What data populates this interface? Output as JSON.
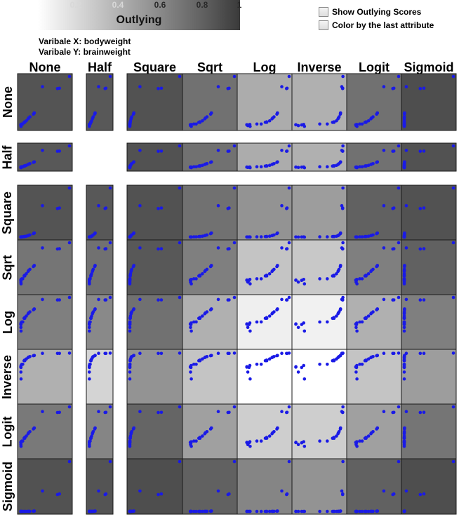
{
  "legend": {
    "title": "Outlying",
    "ticks": [
      "0.2",
      "0.4",
      "0.6",
      "0.8",
      "1"
    ]
  },
  "variables": {
    "x_label": "Varibale X: bodyweight",
    "y_label": "Varibale Y: brainweight"
  },
  "options": {
    "show_scores": "Show Outlying Scores",
    "color_by_last": "Color by the last attribute"
  },
  "chart_data": {
    "type": "scatter-matrix",
    "columns": [
      "None",
      "Half",
      "Square",
      "Sqrt",
      "Log",
      "Inverse",
      "Logit",
      "Sigmoid"
    ],
    "rows": [
      "None",
      "Half",
      "Square",
      "Sqrt",
      "Log",
      "Inverse",
      "Logit",
      "Sigmoid"
    ],
    "point_color": "#1a1ae6",
    "missing_row": "Half",
    "missing_column": "Half",
    "shade_scale": [
      "#ffffff",
      "#3a3a3a"
    ],
    "outlying_scores": [
      [
        0.87,
        0.85,
        0.88,
        0.72,
        0.42,
        0.4,
        0.72,
        0.9
      ],
      [
        0.85,
        null,
        0.88,
        0.72,
        0.42,
        0.4,
        0.72,
        0.88
      ],
      [
        0.87,
        0.85,
        0.88,
        0.72,
        0.55,
        0.5,
        0.8,
        0.88
      ],
      [
        0.7,
        0.72,
        0.85,
        0.65,
        0.3,
        0.28,
        0.65,
        0.8
      ],
      [
        0.65,
        0.6,
        0.72,
        0.4,
        0.08,
        0.07,
        0.4,
        0.65
      ],
      [
        0.4,
        0.22,
        0.55,
        0.3,
        0.0,
        0.0,
        0.3,
        0.5
      ],
      [
        0.68,
        0.62,
        0.78,
        0.48,
        0.25,
        0.25,
        0.48,
        0.7
      ],
      [
        0.88,
        0.87,
        0.9,
        0.8,
        0.62,
        0.55,
        0.8,
        0.9
      ]
    ]
  }
}
